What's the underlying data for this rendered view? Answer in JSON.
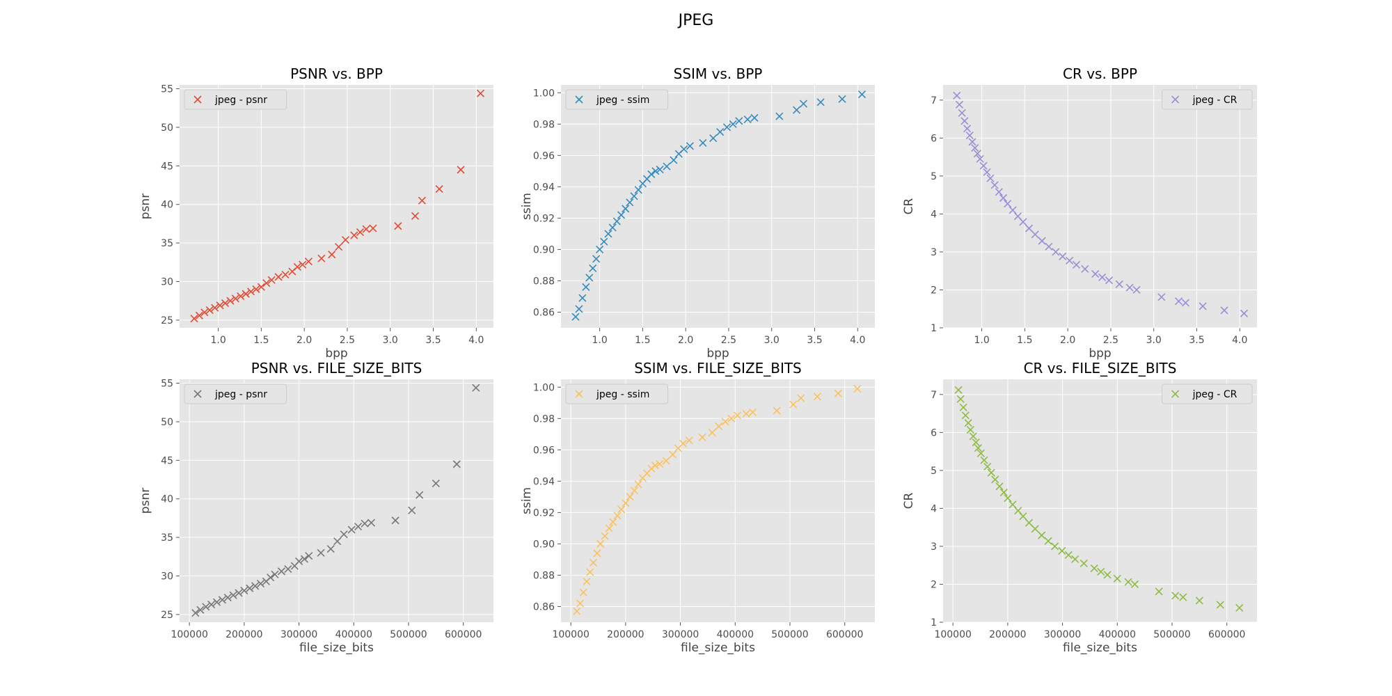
{
  "figure": {
    "suptitle": "JPEG"
  },
  "chart_data": [
    {
      "type": "scatter",
      "title": "PSNR vs. BPP",
      "xlabel": "bpp",
      "ylabel": "psnr",
      "xlim": [
        0.55,
        4.2
      ],
      "ylim": [
        24.0,
        55.5
      ],
      "xticks": [
        1.0,
        1.5,
        2.0,
        2.5,
        3.0,
        3.5,
        4.0
      ],
      "yticks": [
        25,
        30,
        35,
        40,
        45,
        50,
        55
      ],
      "xtick_labels": [
        "1.0",
        "1.5",
        "2.0",
        "2.5",
        "3.0",
        "3.5",
        "4.0"
      ],
      "ytick_labels": [
        "25",
        "30",
        "35",
        "40",
        "45",
        "50",
        "55"
      ],
      "legend": "top-left",
      "grid": true,
      "series": [
        {
          "name": "jpeg - psnr",
          "color": "#E24A33",
          "marker": "x",
          "x": [
            0.72,
            0.78,
            0.84,
            0.9,
            0.96,
            1.02,
            1.08,
            1.14,
            1.2,
            1.26,
            1.32,
            1.38,
            1.44,
            1.5,
            1.56,
            1.62,
            1.7,
            1.78,
            1.86,
            1.92,
            1.98,
            2.05,
            2.2,
            2.32,
            2.4,
            2.48,
            2.58,
            2.65,
            2.72,
            2.8,
            3.09,
            3.29,
            3.37,
            3.57,
            3.82,
            4.05
          ],
          "y": [
            25.2,
            25.6,
            26.0,
            26.3,
            26.6,
            26.9,
            27.2,
            27.5,
            27.8,
            28.1,
            28.4,
            28.7,
            29.0,
            29.3,
            29.8,
            30.2,
            30.6,
            30.9,
            31.3,
            31.9,
            32.2,
            32.6,
            33.0,
            33.5,
            34.5,
            35.4,
            36.0,
            36.4,
            36.8,
            36.9,
            37.2,
            38.5,
            40.5,
            42.0,
            44.5,
            54.4
          ]
        }
      ]
    },
    {
      "type": "scatter",
      "title": "SSIM vs. BPP",
      "xlabel": "bpp",
      "ylabel": "ssim",
      "xlim": [
        0.55,
        4.2
      ],
      "ylim": [
        0.85,
        1.005
      ],
      "xticks": [
        1.0,
        1.5,
        2.0,
        2.5,
        3.0,
        3.5,
        4.0
      ],
      "yticks": [
        0.86,
        0.88,
        0.9,
        0.92,
        0.94,
        0.96,
        0.98,
        1.0
      ],
      "xtick_labels": [
        "1.0",
        "1.5",
        "2.0",
        "2.5",
        "3.0",
        "3.5",
        "4.0"
      ],
      "ytick_labels": [
        "0.86",
        "0.88",
        "0.90",
        "0.92",
        "0.94",
        "0.96",
        "0.98",
        "1.00"
      ],
      "legend": "top-left",
      "grid": true,
      "series": [
        {
          "name": "jpeg - ssim",
          "color": "#348ABD",
          "marker": "x",
          "x": [
            0.72,
            0.76,
            0.8,
            0.84,
            0.88,
            0.92,
            0.96,
            1.0,
            1.05,
            1.1,
            1.15,
            1.2,
            1.25,
            1.3,
            1.35,
            1.4,
            1.45,
            1.5,
            1.55,
            1.6,
            1.65,
            1.7,
            1.78,
            1.86,
            1.92,
            1.98,
            2.05,
            2.2,
            2.32,
            2.4,
            2.48,
            2.55,
            2.62,
            2.72,
            2.8,
            3.09,
            3.29,
            3.37,
            3.57,
            3.82,
            4.05
          ],
          "y": [
            0.857,
            0.862,
            0.869,
            0.876,
            0.882,
            0.888,
            0.894,
            0.9,
            0.905,
            0.91,
            0.914,
            0.918,
            0.922,
            0.926,
            0.93,
            0.934,
            0.938,
            0.942,
            0.945,
            0.948,
            0.95,
            0.951,
            0.953,
            0.957,
            0.961,
            0.964,
            0.966,
            0.968,
            0.971,
            0.975,
            0.978,
            0.98,
            0.982,
            0.983,
            0.984,
            0.985,
            0.989,
            0.993,
            0.994,
            0.996,
            0.999
          ]
        }
      ]
    },
    {
      "type": "scatter",
      "title": "CR vs. BPP",
      "xlabel": "bpp",
      "ylabel": "CR",
      "xlim": [
        0.55,
        4.2
      ],
      "ylim": [
        1.0,
        7.4
      ],
      "xticks": [
        1.0,
        1.5,
        2.0,
        2.5,
        3.0,
        3.5,
        4.0
      ],
      "yticks": [
        1,
        2,
        3,
        4,
        5,
        6,
        7
      ],
      "xtick_labels": [
        "1.0",
        "1.5",
        "2.0",
        "2.5",
        "3.0",
        "3.5",
        "4.0"
      ],
      "ytick_labels": [
        "1",
        "2",
        "3",
        "4",
        "5",
        "6",
        "7"
      ],
      "legend": "top-right",
      "grid": true,
      "series": [
        {
          "name": "jpeg - CR",
          "color": "#988ED5",
          "marker": "x",
          "x": [
            0.71,
            0.74,
            0.77,
            0.8,
            0.83,
            0.86,
            0.89,
            0.92,
            0.95,
            0.98,
            1.02,
            1.06,
            1.1,
            1.15,
            1.2,
            1.25,
            1.3,
            1.36,
            1.42,
            1.48,
            1.55,
            1.62,
            1.7,
            1.78,
            1.86,
            1.94,
            2.02,
            2.1,
            2.2,
            2.32,
            2.4,
            2.48,
            2.6,
            2.72,
            2.8,
            3.09,
            3.29,
            3.37,
            3.57,
            3.82,
            4.05
          ],
          "y": [
            7.12,
            6.88,
            6.66,
            6.45,
            6.25,
            6.07,
            5.9,
            5.74,
            5.59,
            5.45,
            5.27,
            5.1,
            4.94,
            4.76,
            4.58,
            4.42,
            4.27,
            4.1,
            3.94,
            3.79,
            3.62,
            3.46,
            3.29,
            3.14,
            3.0,
            2.88,
            2.77,
            2.66,
            2.55,
            2.42,
            2.33,
            2.25,
            2.15,
            2.06,
            2.0,
            1.81,
            1.7,
            1.66,
            1.57,
            1.46,
            1.38
          ]
        }
      ]
    },
    {
      "type": "scatter",
      "title": "PSNR vs. FILE_SIZE_BITS",
      "xlabel": "file_size_bits",
      "ylabel": "psnr",
      "xlim": [
        82000,
        655000
      ],
      "ylim": [
        24.0,
        55.5
      ],
      "xticks": [
        100000,
        200000,
        300000,
        400000,
        500000,
        600000
      ],
      "yticks": [
        25,
        30,
        35,
        40,
        45,
        50,
        55
      ],
      "xtick_labels": [
        "100000",
        "200000",
        "300000",
        "400000",
        "500000",
        "600000"
      ],
      "ytick_labels": [
        "25",
        "30",
        "35",
        "40",
        "45",
        "50",
        "55"
      ],
      "legend": "top-left",
      "grid": true,
      "series": [
        {
          "name": "jpeg - psnr",
          "color": "#777777",
          "marker": "x",
          "x": [
            111000,
            120000,
            130000,
            140000,
            150000,
            160000,
            170000,
            180000,
            190000,
            200000,
            210000,
            220000,
            230000,
            240000,
            248000,
            256000,
            268000,
            280000,
            292000,
            300000,
            310000,
            318000,
            340000,
            358000,
            370000,
            382000,
            396000,
            408000,
            420000,
            432000,
            476000,
            506000,
            520000,
            550000,
            588000,
            623000
          ],
          "y": [
            25.2,
            25.6,
            26.0,
            26.3,
            26.6,
            26.9,
            27.2,
            27.5,
            27.8,
            28.1,
            28.4,
            28.7,
            29.0,
            29.3,
            29.8,
            30.2,
            30.6,
            30.9,
            31.3,
            31.9,
            32.2,
            32.6,
            33.0,
            33.5,
            34.5,
            35.4,
            36.0,
            36.4,
            36.8,
            36.9,
            37.2,
            38.5,
            40.5,
            42.0,
            44.5,
            54.4
          ]
        }
      ]
    },
    {
      "type": "scatter",
      "title": "SSIM vs. FILE_SIZE_BITS",
      "xlabel": "file_size_bits",
      "ylabel": "ssim",
      "xlim": [
        82000,
        655000
      ],
      "ylim": [
        0.85,
        1.005
      ],
      "xticks": [
        100000,
        200000,
        300000,
        400000,
        500000,
        600000
      ],
      "yticks": [
        0.86,
        0.88,
        0.9,
        0.92,
        0.94,
        0.96,
        0.98,
        1.0
      ],
      "xtick_labels": [
        "100000",
        "200000",
        "300000",
        "400000",
        "500000",
        "600000"
      ],
      "ytick_labels": [
        "0.86",
        "0.88",
        "0.90",
        "0.92",
        "0.94",
        "0.96",
        "0.98",
        "1.00"
      ],
      "legend": "top-left",
      "grid": true,
      "series": [
        {
          "name": "jpeg - ssim",
          "color": "#FBC15E",
          "marker": "x",
          "x": [
            111000,
            117000,
            123000,
            129000,
            135000,
            141000,
            148000,
            154000,
            162000,
            170000,
            177000,
            185000,
            192000,
            200000,
            208000,
            216000,
            223000,
            231000,
            239000,
            247000,
            254000,
            262000,
            274000,
            286000,
            296000,
            305000,
            316000,
            340000,
            358000,
            370000,
            382000,
            393000,
            404000,
            420000,
            432000,
            476000,
            506000,
            520000,
            550000,
            588000,
            623000
          ],
          "y": [
            0.857,
            0.862,
            0.869,
            0.876,
            0.882,
            0.888,
            0.894,
            0.9,
            0.905,
            0.91,
            0.914,
            0.918,
            0.922,
            0.926,
            0.93,
            0.934,
            0.938,
            0.942,
            0.945,
            0.948,
            0.95,
            0.951,
            0.953,
            0.957,
            0.961,
            0.964,
            0.966,
            0.968,
            0.971,
            0.975,
            0.978,
            0.98,
            0.982,
            0.983,
            0.984,
            0.985,
            0.989,
            0.993,
            0.994,
            0.996,
            0.999
          ]
        }
      ]
    },
    {
      "type": "scatter",
      "title": "CR vs. FILE_SIZE_BITS",
      "xlabel": "file_size_bits",
      "ylabel": "CR",
      "xlim": [
        82000,
        655000
      ],
      "ylim": [
        1.0,
        7.4
      ],
      "xticks": [
        100000,
        200000,
        300000,
        400000,
        500000,
        600000
      ],
      "yticks": [
        1,
        2,
        3,
        4,
        5,
        6,
        7
      ],
      "xtick_labels": [
        "100000",
        "200000",
        "300000",
        "400000",
        "500000",
        "600000"
      ],
      "ytick_labels": [
        "1",
        "2",
        "3",
        "4",
        "5",
        "6",
        "7"
      ],
      "legend": "top-right",
      "grid": true,
      "series": [
        {
          "name": "jpeg - CR",
          "color": "#8EBA42",
          "marker": "x",
          "x": [
            110000,
            114000,
            119000,
            123000,
            128000,
            132000,
            137000,
            142000,
            146000,
            151000,
            157000,
            163000,
            170000,
            177000,
            185000,
            193000,
            200000,
            209000,
            219000,
            228000,
            239000,
            250000,
            262000,
            274000,
            286000,
            299000,
            311000,
            323000,
            339000,
            358000,
            370000,
            382000,
            400000,
            420000,
            432000,
            476000,
            506000,
            520000,
            550000,
            588000,
            623000
          ],
          "y": [
            7.12,
            6.88,
            6.66,
            6.45,
            6.25,
            6.07,
            5.9,
            5.74,
            5.59,
            5.45,
            5.27,
            5.1,
            4.94,
            4.76,
            4.58,
            4.42,
            4.27,
            4.1,
            3.94,
            3.79,
            3.62,
            3.46,
            3.29,
            3.14,
            3.0,
            2.88,
            2.77,
            2.66,
            2.55,
            2.42,
            2.33,
            2.25,
            2.15,
            2.06,
            2.0,
            1.81,
            1.7,
            1.66,
            1.57,
            1.46,
            1.38
          ]
        }
      ]
    }
  ]
}
